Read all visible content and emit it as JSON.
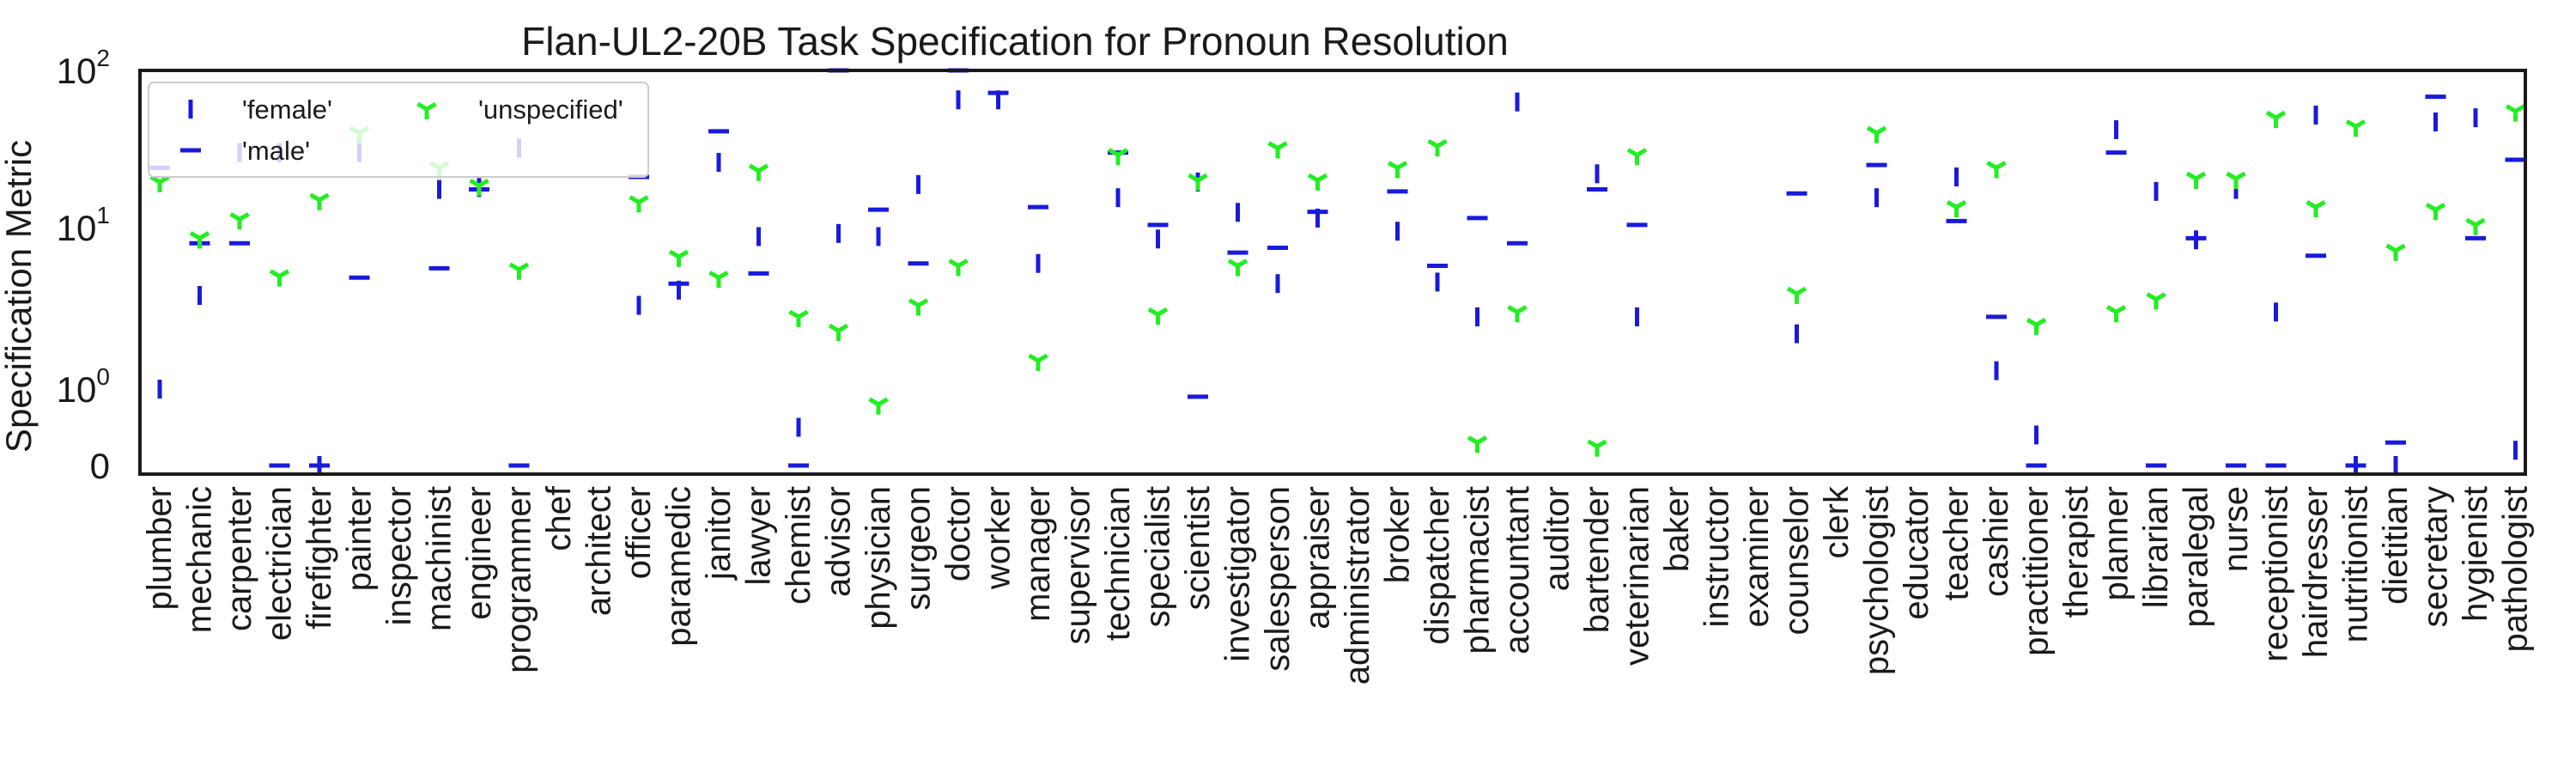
{
  "chart_data": {
    "type": "scatter",
    "title": "Flan-UL2-20B Task Specification for Pronoun Resolution",
    "xlabel": "",
    "ylabel": "Specification Metric",
    "yscale": "symlog",
    "ylim": [
      0,
      100
    ],
    "yticks": [
      {
        "value": 0,
        "base": "0",
        "exp": ""
      },
      {
        "value": 1,
        "base": "10",
        "exp": "0"
      },
      {
        "value": 10,
        "base": "10",
        "exp": "1"
      },
      {
        "value": 100,
        "base": "10",
        "exp": "2"
      }
    ],
    "grid": false,
    "legend": {
      "position": "top-left",
      "ncol": 2
    },
    "categories": [
      "plumber",
      "mechanic",
      "carpenter",
      "electrician",
      "firefighter",
      "painter",
      "inspector",
      "machinist",
      "engineer",
      "programmer",
      "chef",
      "architect",
      "officer",
      "paramedic",
      "janitor",
      "lawyer",
      "chemist",
      "advisor",
      "physician",
      "surgeon",
      "doctor",
      "worker",
      "manager",
      "supervisor",
      "technician",
      "specialist",
      "scientist",
      "investigator",
      "salesperson",
      "appraiser",
      "administrator",
      "broker",
      "dispatcher",
      "pharmacist",
      "accountant",
      "auditor",
      "bartender",
      "veterinarian",
      "baker",
      "instructor",
      "examiner",
      "counselor",
      "clerk",
      "psychologist",
      "educator",
      "teacher",
      "cashier",
      "practitioner",
      "therapist",
      "planner",
      "librarian",
      "paralegal",
      "nurse",
      "receptionist",
      "hairdresser",
      "nutritionist",
      "dietitian",
      "secretary",
      "hygienist",
      "pathologist"
    ],
    "series": [
      {
        "name": "'female'",
        "marker": "vline",
        "color": "#1a1adc",
        "values": [
          1.0,
          3.8,
          30,
          30,
          0.0,
          30,
          null,
          17.5,
          18,
          32,
          null,
          null,
          3.3,
          4.1,
          26,
          8.8,
          0.5,
          9.2,
          8.8,
          18.8,
          65,
          65,
          6.0,
          null,
          15.5,
          8.5,
          19.5,
          12.5,
          4.5,
          11.5,
          null,
          9.5,
          4.6,
          2.8,
          63,
          null,
          22,
          2.8,
          null,
          null,
          null,
          2.2,
          null,
          15.5,
          null,
          21,
          1.3,
          0.4,
          null,
          42,
          17,
          8.4,
          17.5,
          3.0,
          52,
          0.0,
          0.0,
          47,
          50,
          0.2
        ]
      },
      {
        "name": "'male'",
        "marker": "hline",
        "color": "#1a1adc",
        "values": [
          24,
          8.0,
          8.0,
          0.0,
          0.0,
          4.9,
          null,
          5.6,
          17.5,
          0.0,
          null,
          null,
          21,
          4.5,
          41,
          5.2,
          0.0,
          100,
          13,
          6.0,
          100,
          72,
          13.5,
          null,
          30,
          10.4,
          0.9,
          7.0,
          7.5,
          12.6,
          null,
          17,
          5.8,
          11.5,
          8.0,
          null,
          17.5,
          10.4,
          null,
          null,
          null,
          16.5,
          null,
          25,
          null,
          11,
          2.8,
          0.0,
          null,
          30,
          0.0,
          8.6,
          0.0,
          0.0,
          6.7,
          0.0,
          0.3,
          68,
          8.6,
          27
        ]
      },
      {
        "name": "'unspecified'",
        "marker": "tri_down",
        "color": "#22ee22",
        "values": [
          19.5,
          8.6,
          11.3,
          5.0,
          15.0,
          40,
          null,
          24,
          18.5,
          5.5,
          null,
          null,
          14.5,
          6.6,
          4.9,
          23,
          2.8,
          2.3,
          0.8,
          3.3,
          5.8,
          null,
          1.5,
          null,
          29,
          2.9,
          20,
          5.8,
          32,
          20,
          null,
          24,
          33,
          0.3,
          3.0,
          null,
          0.25,
          29,
          null,
          null,
          null,
          3.9,
          null,
          40,
          null,
          13.5,
          24,
          2.5,
          null,
          3.0,
          3.6,
          20.5,
          20.5,
          50,
          13.5,
          44,
          7.2,
          13,
          10.4,
          55
        ]
      }
    ]
  }
}
